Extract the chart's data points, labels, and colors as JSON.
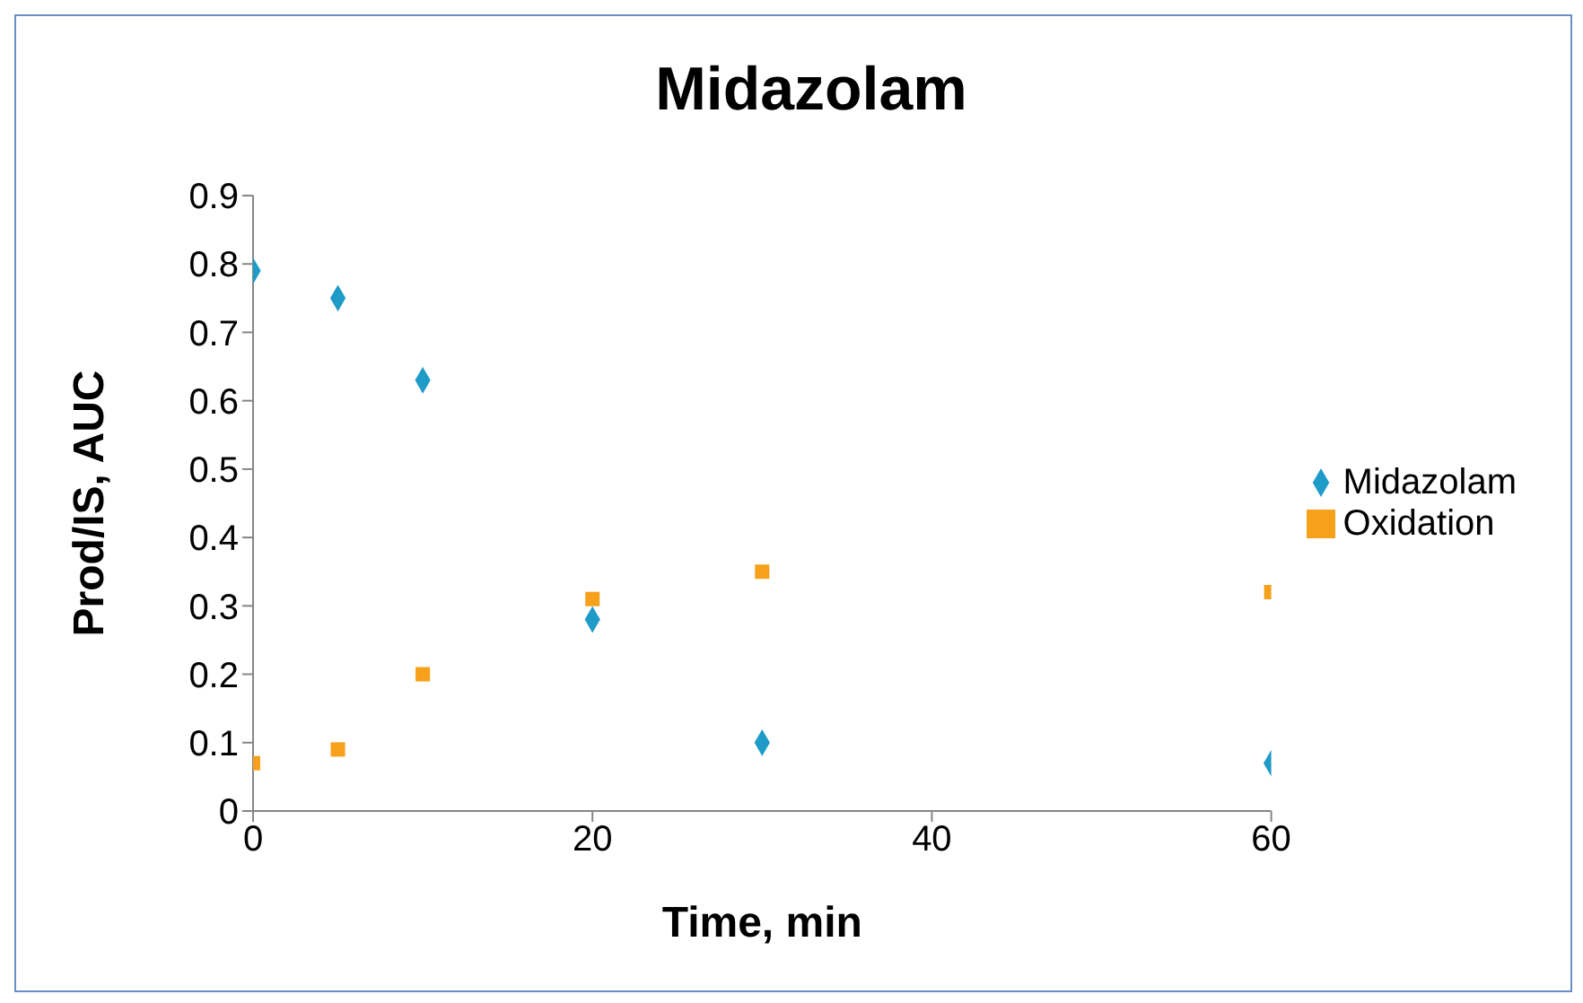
{
  "chart_data": {
    "type": "scatter",
    "title": "Midazolam",
    "xlabel": "Time, min",
    "ylabel": "Prod/IS, AUC",
    "x": [
      0,
      5,
      10,
      20,
      30,
      60
    ],
    "series": [
      {
        "name": "Midazolam",
        "color": "#1f9bc8",
        "marker": "diamond",
        "values": [
          0.79,
          0.75,
          0.63,
          0.28,
          0.1,
          0.07
        ]
      },
      {
        "name": "Oxidation",
        "color": "#f7a01c",
        "marker": "square",
        "values": [
          0.07,
          0.09,
          0.2,
          0.31,
          0.35,
          0.32
        ]
      }
    ],
    "xlim": [
      0,
      60
    ],
    "xticks": [
      0,
      20,
      40,
      60
    ],
    "ylim": [
      0,
      0.9
    ],
    "yticks": [
      0,
      0.1,
      0.2,
      0.3,
      0.4,
      0.5,
      0.6,
      0.7,
      0.8,
      0.9
    ],
    "grid": false,
    "legend": "right"
  }
}
